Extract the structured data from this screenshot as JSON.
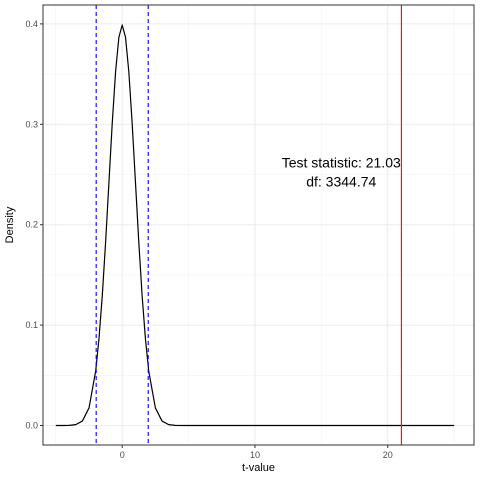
{
  "chart_data": {
    "type": "line",
    "title": "",
    "xlabel": "t-value",
    "ylabel": "Density",
    "xlim": [
      -5,
      25
    ],
    "ylim": [
      0,
      0.4
    ],
    "x_ticks": [
      0,
      10,
      20
    ],
    "y_ticks": [
      0.0,
      0.1,
      0.2,
      0.3,
      0.4
    ],
    "x_tick_labels": [
      "0",
      "10",
      "20"
    ],
    "y_tick_labels": [
      "0.0",
      "0.1",
      "0.2",
      "0.3",
      "0.4"
    ],
    "grid": true,
    "series": [
      {
        "color": "#000000",
        "x": [
          -5,
          -4.5,
          -4,
          -3.5,
          -3,
          -2.5,
          -2,
          -1.75,
          -1.5,
          -1.25,
          -1,
          -0.75,
          -0.5,
          -0.25,
          0,
          0.25,
          0.5,
          0.75,
          1,
          1.25,
          1.5,
          1.75,
          2,
          2.5,
          3,
          3.5,
          4,
          4.5,
          5,
          6,
          8,
          10,
          15,
          20,
          25
        ],
        "y": [
          1.5e-06,
          1.6e-05,
          0.000134,
          0.000873,
          0.00443,
          0.0175,
          0.054,
          0.0863,
          0.1295,
          0.1826,
          0.242,
          0.3011,
          0.3521,
          0.3867,
          0.3989,
          0.3867,
          0.3521,
          0.3011,
          0.242,
          0.1826,
          0.1295,
          0.0863,
          0.054,
          0.0175,
          0.00443,
          0.000873,
          0.000134,
          1.6e-05,
          1.5e-06,
          0,
          0,
          0,
          0,
          0,
          0
        ]
      }
    ],
    "critical_lines": {
      "color": "#0000ff",
      "style": "dashed",
      "x": [
        -1.96,
        1.96
      ]
    },
    "statistic_line": {
      "color": "#ff0000",
      "x": 21.03
    },
    "annotation": {
      "line1": "Test statistic: 21.03",
      "line2": "df: 3344.74",
      "x": 16.5,
      "y": 0.255
    }
  }
}
